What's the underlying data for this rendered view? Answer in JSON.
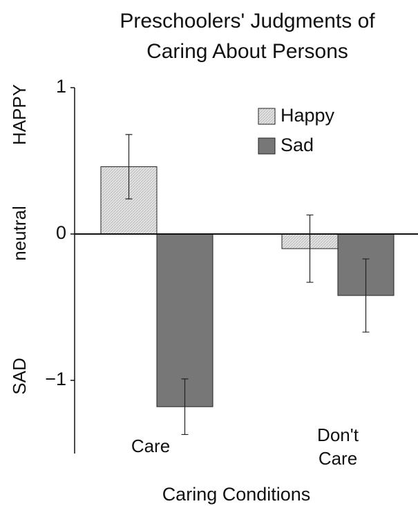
{
  "chart_data": {
    "type": "bar",
    "title": "Preschoolers' Judgments of Caring About Persons",
    "xlabel": "Caring Conditions",
    "side_labels": [
      "HAPPY",
      "neutral",
      "SAD"
    ],
    "categories": [
      "Care",
      "Don't Care"
    ],
    "series": [
      {
        "name": "Happy",
        "color": "#e2e2e2",
        "values": [
          0.46,
          -0.1
        ],
        "errors": [
          0.22,
          0.23
        ]
      },
      {
        "name": "Sad",
        "color": "#777777",
        "values": [
          -1.18,
          -0.42
        ],
        "errors": [
          0.19,
          0.25
        ]
      }
    ],
    "ylim": [
      -1.5,
      1
    ],
    "yticks": [
      1,
      0,
      {
        "value": -1,
        "label": "−1"
      }
    ],
    "legend": "upper right"
  }
}
